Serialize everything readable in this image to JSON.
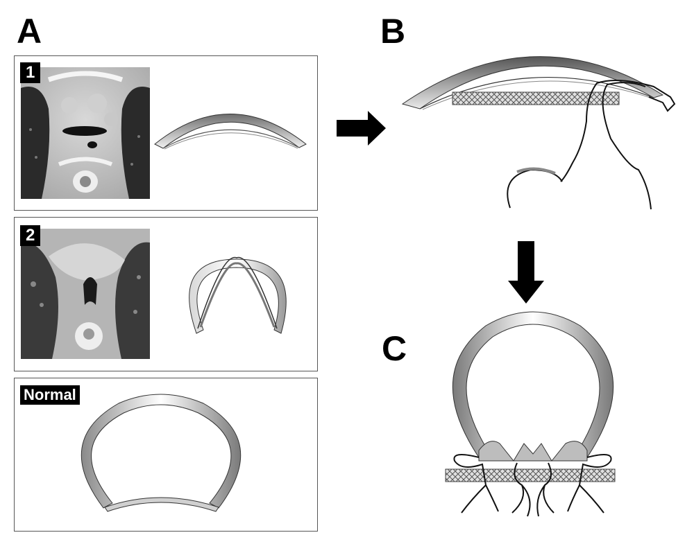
{
  "panels": {
    "a": {
      "letter": "A"
    },
    "b": {
      "letter": "B"
    },
    "c": {
      "letter": "C"
    }
  },
  "boxes": [
    {
      "tag": "1"
    },
    {
      "tag": "2"
    },
    {
      "tag": "Normal"
    }
  ],
  "colors": {
    "arrow": "#000000",
    "mesh": "#bdbdbd",
    "box_border": "#555555",
    "tag_bg": "#000000"
  }
}
